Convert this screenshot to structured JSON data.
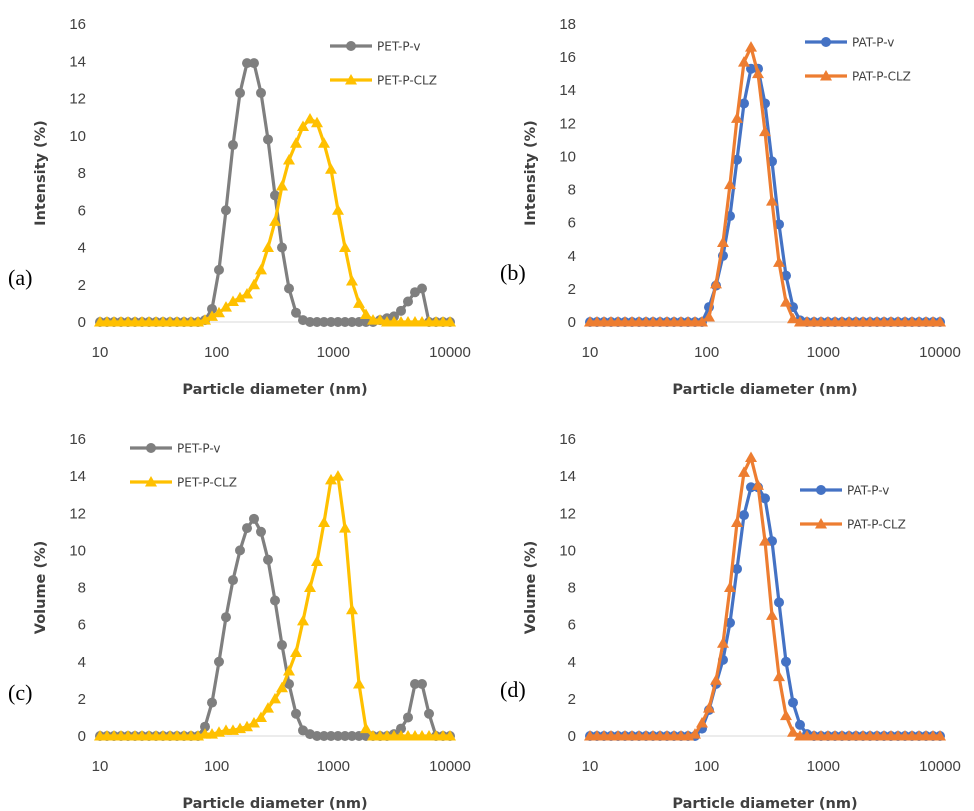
{
  "chart_data": [
    {
      "type": "line",
      "panel_label": "(a)",
      "xlabel": "Particle diameter (nm)",
      "ylabel": "Intensity (%)",
      "xscale": "log",
      "xlim": [
        10,
        10000
      ],
      "xticks": [
        10,
        100,
        1000,
        10000
      ],
      "ylim": [
        0,
        16
      ],
      "yticks": [
        0,
        2,
        4,
        6,
        8,
        10,
        12,
        14,
        16
      ],
      "grid": false,
      "legend_position": "top-right",
      "series": [
        {
          "name": "PET-P-v",
          "color": "#7f7f7f",
          "marker": "circle",
          "x": [
            10,
            11.48,
            13.18,
            15.14,
            17.38,
            19.95,
            22.91,
            26.3,
            30.2,
            34.67,
            39.81,
            45.71,
            52.48,
            60.26,
            69.18,
            79.43,
            91.2,
            104.7,
            120.2,
            138.0,
            158.5,
            182.0,
            208.9,
            239.9,
            275.4,
            316.2,
            363.1,
            416.9,
            478.6,
            549.5,
            631.0,
            724.4,
            831.8,
            955.0,
            1096,
            1259,
            1445,
            1660,
            1905,
            2188,
            2512,
            2884,
            3311,
            3802,
            4365,
            5012,
            5754,
            6607,
            7586,
            8710,
            10000
          ],
          "y": [
            0,
            0,
            0,
            0,
            0,
            0,
            0,
            0,
            0,
            0,
            0,
            0,
            0,
            0,
            0,
            0.1,
            0.7,
            2.8,
            6,
            9.5,
            12.3,
            13.9,
            13.9,
            12.3,
            9.8,
            6.8,
            4,
            1.8,
            0.5,
            0.1,
            0,
            0,
            0,
            0,
            0,
            0,
            0,
            0,
            0,
            0,
            0.1,
            0.2,
            0.3,
            0.6,
            1.1,
            1.6,
            1.8,
            0,
            0,
            0,
            0
          ]
        },
        {
          "name": "PET-P-CLZ",
          "color": "#ffc000",
          "marker": "triangle",
          "x": [
            10,
            11.48,
            13.18,
            15.14,
            17.38,
            19.95,
            22.91,
            26.3,
            30.2,
            34.67,
            39.81,
            45.71,
            52.48,
            60.26,
            69.18,
            79.43,
            91.2,
            104.7,
            120.2,
            138.0,
            158.5,
            182.0,
            208.9,
            239.9,
            275.4,
            316.2,
            363.1,
            416.9,
            478.6,
            549.5,
            631.0,
            724.4,
            831.8,
            955.0,
            1096,
            1259,
            1445,
            1660,
            1905,
            2188,
            2512,
            2884,
            3311,
            3802,
            4365,
            5012,
            5754,
            6607,
            7586,
            8710,
            10000
          ],
          "y": [
            0,
            0,
            0,
            0,
            0,
            0,
            0,
            0,
            0,
            0,
            0,
            0,
            0,
            0,
            0,
            0.1,
            0.3,
            0.5,
            0.8,
            1.1,
            1.3,
            1.5,
            2,
            2.8,
            4,
            5.4,
            7.3,
            8.7,
            9.6,
            10.5,
            10.9,
            10.7,
            9.6,
            8.2,
            6,
            4,
            2.2,
            1,
            0.4,
            0.1,
            0.1,
            0,
            0,
            0,
            0,
            0,
            0,
            0,
            0,
            0,
            0
          ]
        }
      ]
    },
    {
      "type": "line",
      "panel_label": "(b)",
      "xlabel": "Particle diameter (nm)",
      "ylabel": "Intensity (%)",
      "xscale": "log",
      "xlim": [
        10,
        10000
      ],
      "xticks": [
        10,
        100,
        1000,
        10000
      ],
      "ylim": [
        0,
        18
      ],
      "yticks": [
        0,
        2,
        4,
        6,
        8,
        10,
        12,
        14,
        16,
        18
      ],
      "grid": false,
      "legend_position": "top-right",
      "series": [
        {
          "name": "PAT-P-v",
          "color": "#4472c4",
          "marker": "circle",
          "x": [
            10,
            11.48,
            13.18,
            15.14,
            17.38,
            19.95,
            22.91,
            26.3,
            30.2,
            34.67,
            39.81,
            45.71,
            52.48,
            60.26,
            69.18,
            79.43,
            91.2,
            104.7,
            120.2,
            138.0,
            158.5,
            182.0,
            208.9,
            239.9,
            275.4,
            316.2,
            363.1,
            416.9,
            478.6,
            549.5,
            631.0,
            724.4,
            831.8,
            955.0,
            1096,
            1259,
            1445,
            1660,
            1905,
            2188,
            2512,
            2884,
            3311,
            3802,
            4365,
            5012,
            5754,
            6607,
            7586,
            8710,
            10000
          ],
          "y": [
            0,
            0,
            0,
            0,
            0,
            0,
            0,
            0,
            0,
            0,
            0,
            0,
            0,
            0,
            0,
            0,
            0,
            0.9,
            2.2,
            4,
            6.4,
            9.8,
            13.2,
            15.3,
            15.3,
            13.2,
            9.7,
            5.9,
            2.8,
            0.9,
            0.1,
            0,
            0,
            0,
            0,
            0,
            0,
            0,
            0,
            0,
            0,
            0,
            0,
            0,
            0,
            0,
            0,
            0,
            0,
            0,
            0
          ]
        },
        {
          "name": "PAT-P-CLZ",
          "color": "#ed7d31",
          "marker": "triangle",
          "x": [
            10,
            11.48,
            13.18,
            15.14,
            17.38,
            19.95,
            22.91,
            26.3,
            30.2,
            34.67,
            39.81,
            45.71,
            52.48,
            60.26,
            69.18,
            79.43,
            91.2,
            104.7,
            120.2,
            138.0,
            158.5,
            182.0,
            208.9,
            239.9,
            275.4,
            316.2,
            363.1,
            416.9,
            478.6,
            549.5,
            631.0,
            724.4,
            831.8,
            955.0,
            1096,
            1259,
            1445,
            1660,
            1905,
            2188,
            2512,
            2884,
            3311,
            3802,
            4365,
            5012,
            5754,
            6607,
            7586,
            8710,
            10000
          ],
          "y": [
            0,
            0,
            0,
            0,
            0,
            0,
            0,
            0,
            0,
            0,
            0,
            0,
            0,
            0,
            0,
            0,
            0,
            0.3,
            2.3,
            4.8,
            8.3,
            12.3,
            15.7,
            16.6,
            15,
            11.5,
            7.3,
            3.6,
            1.2,
            0.2,
            0,
            0,
            0,
            0,
            0,
            0,
            0,
            0,
            0,
            0,
            0,
            0,
            0,
            0,
            0,
            0,
            0,
            0,
            0,
            0,
            0
          ]
        }
      ]
    },
    {
      "type": "line",
      "panel_label": "(c)",
      "xlabel": "Particle diameter (nm)",
      "ylabel": "Volume (%)",
      "xscale": "log",
      "xlim": [
        10,
        10000
      ],
      "xticks": [
        10,
        100,
        1000,
        10000
      ],
      "ylim": [
        0,
        16
      ],
      "yticks": [
        0,
        2,
        4,
        6,
        8,
        10,
        12,
        14,
        16
      ],
      "grid": false,
      "legend_position": "top-left",
      "series": [
        {
          "name": "PET-P-v",
          "color": "#7f7f7f",
          "marker": "circle",
          "x": [
            10,
            11.48,
            13.18,
            15.14,
            17.38,
            19.95,
            22.91,
            26.3,
            30.2,
            34.67,
            39.81,
            45.71,
            52.48,
            60.26,
            69.18,
            79.43,
            91.2,
            104.7,
            120.2,
            138.0,
            158.5,
            182.0,
            208.9,
            239.9,
            275.4,
            316.2,
            363.1,
            416.9,
            478.6,
            549.5,
            631.0,
            724.4,
            831.8,
            955.0,
            1096,
            1259,
            1445,
            1660,
            1905,
            2188,
            2512,
            2884,
            3311,
            3802,
            4365,
            5012,
            5754,
            6607,
            7586,
            8710,
            10000
          ],
          "y": [
            0,
            0,
            0,
            0,
            0,
            0,
            0,
            0,
            0,
            0,
            0,
            0,
            0,
            0,
            0,
            0.5,
            1.8,
            4,
            6.4,
            8.4,
            10,
            11.2,
            11.7,
            11,
            9.5,
            7.3,
            4.9,
            2.8,
            1.2,
            0.3,
            0.1,
            0,
            0,
            0,
            0,
            0,
            0,
            0,
            0,
            0,
            0,
            0,
            0.1,
            0.4,
            1,
            2.8,
            2.8,
            1.2,
            0,
            0,
            0
          ]
        },
        {
          "name": "PET-P-CLZ",
          "color": "#ffc000",
          "marker": "triangle",
          "x": [
            10,
            11.48,
            13.18,
            15.14,
            17.38,
            19.95,
            22.91,
            26.3,
            30.2,
            34.67,
            39.81,
            45.71,
            52.48,
            60.26,
            69.18,
            79.43,
            91.2,
            104.7,
            120.2,
            138.0,
            158.5,
            182.0,
            208.9,
            239.9,
            275.4,
            316.2,
            363.1,
            416.9,
            478.6,
            549.5,
            631.0,
            724.4,
            831.8,
            955.0,
            1096,
            1259,
            1445,
            1660,
            1905,
            2188,
            2512,
            2884,
            3311,
            3802,
            4365,
            5012,
            5754,
            6607,
            7586,
            8710,
            10000
          ],
          "y": [
            0,
            0,
            0,
            0,
            0,
            0,
            0,
            0,
            0,
            0,
            0,
            0,
            0,
            0,
            0,
            0.1,
            0.1,
            0.2,
            0.3,
            0.3,
            0.4,
            0.5,
            0.7,
            1,
            1.5,
            2,
            2.6,
            3.5,
            4.5,
            6.2,
            8,
            9.4,
            11.5,
            13.8,
            14,
            11.2,
            6.8,
            2.8,
            0.4,
            0,
            0,
            0,
            0,
            0,
            0,
            0,
            0,
            0,
            0,
            0,
            0
          ]
        }
      ]
    },
    {
      "type": "line",
      "panel_label": "(d)",
      "xlabel": "Particle diameter (nm)",
      "ylabel": "Volume (%)",
      "xscale": "log",
      "xlim": [
        10,
        10000
      ],
      "xticks": [
        10,
        100,
        1000,
        10000
      ],
      "ylim": [
        0,
        16
      ],
      "yticks": [
        0,
        2,
        4,
        6,
        8,
        10,
        12,
        14,
        16
      ],
      "grid": false,
      "legend_position": "top-right",
      "series": [
        {
          "name": "PAT-P-v",
          "color": "#4472c4",
          "marker": "circle",
          "x": [
            10,
            11.48,
            13.18,
            15.14,
            17.38,
            19.95,
            22.91,
            26.3,
            30.2,
            34.67,
            39.81,
            45.71,
            52.48,
            60.26,
            69.18,
            79.43,
            91.2,
            104.7,
            120.2,
            138.0,
            158.5,
            182.0,
            208.9,
            239.9,
            275.4,
            316.2,
            363.1,
            416.9,
            478.6,
            549.5,
            631.0,
            724.4,
            831.8,
            955.0,
            1096,
            1259,
            1445,
            1660,
            1905,
            2188,
            2512,
            2884,
            3311,
            3802,
            4365,
            5012,
            5754,
            6607,
            7586,
            8710,
            10000
          ],
          "y": [
            0,
            0,
            0,
            0,
            0,
            0,
            0,
            0,
            0,
            0,
            0,
            0,
            0,
            0,
            0,
            0,
            0.4,
            1.4,
            2.8,
            4.1,
            6.1,
            9,
            11.9,
            13.4,
            13.4,
            12.8,
            10.5,
            7.2,
            4,
            1.8,
            0.6,
            0.1,
            0,
            0,
            0,
            0,
            0,
            0,
            0,
            0,
            0,
            0,
            0,
            0,
            0,
            0,
            0,
            0,
            0,
            0,
            0
          ]
        },
        {
          "name": "PAT-P-CLZ",
          "color": "#ed7d31",
          "marker": "triangle",
          "x": [
            10,
            11.48,
            13.18,
            15.14,
            17.38,
            19.95,
            22.91,
            26.3,
            30.2,
            34.67,
            39.81,
            45.71,
            52.48,
            60.26,
            69.18,
            79.43,
            91.2,
            104.7,
            120.2,
            138.0,
            158.5,
            182.0,
            208.9,
            239.9,
            275.4,
            316.2,
            363.1,
            416.9,
            478.6,
            549.5,
            631.0,
            724.4,
            831.8,
            955.0,
            1096,
            1259,
            1445,
            1660,
            1905,
            2188,
            2512,
            2884,
            3311,
            3802,
            4365,
            5012,
            5754,
            6607,
            7586,
            8710,
            10000
          ],
          "y": [
            0,
            0,
            0,
            0,
            0,
            0,
            0,
            0,
            0,
            0,
            0,
            0,
            0,
            0,
            0,
            0.1,
            0.7,
            1.5,
            3,
            5,
            8,
            11.5,
            14.2,
            15,
            13.5,
            10.5,
            6.5,
            3.2,
            1.1,
            0.2,
            0,
            0,
            0,
            0,
            0,
            0,
            0,
            0,
            0,
            0,
            0,
            0,
            0,
            0,
            0,
            0,
            0,
            0,
            0,
            0,
            0
          ]
        }
      ]
    }
  ]
}
